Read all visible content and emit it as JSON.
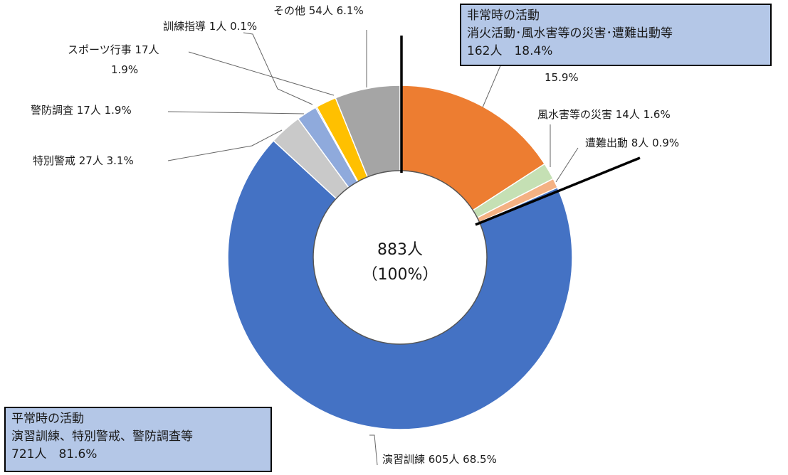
{
  "chart_data": {
    "type": "pie",
    "center": {
      "total": "883人",
      "percent": "（100%）"
    },
    "slices": [
      {
        "name": "消火活動",
        "count": 140,
        "percent": 15.9,
        "label": "15.9%",
        "color": "#ed7d31",
        "group": "emergency"
      },
      {
        "name": "風水害等の災害",
        "count": 14,
        "percent": 1.6,
        "label": "風水害等の災害 14人 1.6%",
        "color": "#c5e0b4",
        "group": "emergency"
      },
      {
        "name": "遭難出動",
        "count": 8,
        "percent": 0.9,
        "label": "遭難出動 8人 0.9%",
        "color": "#f4b183",
        "group": "emergency"
      },
      {
        "name": "演習訓練",
        "count": 605,
        "percent": 68.5,
        "label": "演習訓練 605人 68.5%",
        "color": "#4472c4",
        "group": "normal"
      },
      {
        "name": "特別警戒",
        "count": 27,
        "percent": 3.1,
        "label": "特別警戒 27人 3.1%",
        "color": "#c9c9c9",
        "group": "normal"
      },
      {
        "name": "警防調査",
        "count": 17,
        "percent": 1.9,
        "label": "警防調査 17人 1.9%",
        "color": "#8faadc",
        "group": "normal"
      },
      {
        "name": "訓練指導",
        "count": 1,
        "percent": 0.1,
        "label": "訓練指導 1人 0.1%",
        "color": "#2e5597",
        "group": "normal"
      },
      {
        "name": "スポーツ行事",
        "count": 17,
        "percent": 1.9,
        "label_line1": "スポーツ行事 17人",
        "label_line2": "1.9%",
        "color": "#ffc000",
        "group": "normal"
      },
      {
        "name": "その他",
        "count": 54,
        "percent": 6.1,
        "label": "その他 54人 6.1%",
        "color": "#a5a5a5",
        "group": "normal"
      }
    ]
  },
  "boxes": {
    "emergency": {
      "title": "非常時の活動",
      "items": "消火活動･風水害等の災害･遭難出動等",
      "total": "162人　18.4%"
    },
    "normal": {
      "title": "平常時の活動",
      "items": "演習訓練、特別警戒、警防調査等",
      "total": "721人　81.6%"
    }
  }
}
